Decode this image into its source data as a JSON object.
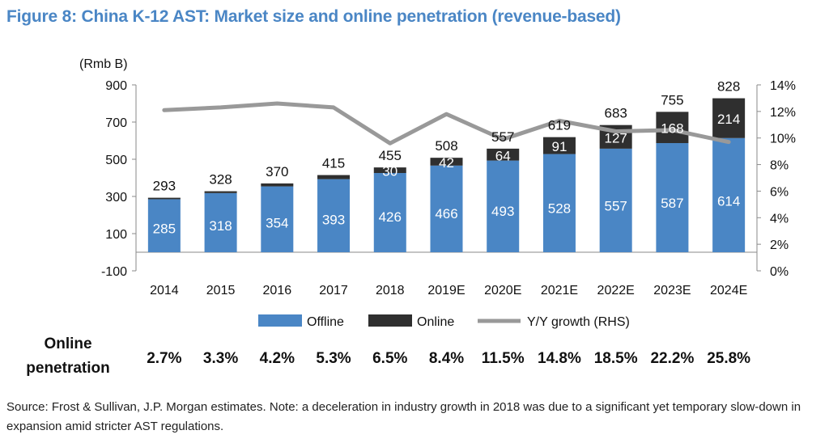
{
  "title": "Figure 8: China K-12 AST: Market size and online penetration (revenue-based)",
  "colors": {
    "title": "#4a86c5",
    "offline": "#4a86c5",
    "online": "#2f2f2f",
    "growth_line": "#999999"
  },
  "chart_data": {
    "type": "bar",
    "stacked": true,
    "categories": [
      "2014",
      "2015",
      "2016",
      "2017",
      "2018",
      "2019E",
      "2020E",
      "2021E",
      "2022E",
      "2023E",
      "2024E"
    ],
    "series": [
      {
        "name": "Offline",
        "axis": "left",
        "values": [
          285,
          318,
          354,
          393,
          426,
          466,
          493,
          528,
          557,
          587,
          614
        ]
      },
      {
        "name": "Online",
        "axis": "left",
        "values": [
          8,
          10,
          16,
          22,
          30,
          42,
          64,
          91,
          127,
          168,
          214
        ]
      },
      {
        "name": "Y/Y growth (RHS)",
        "type": "line",
        "axis": "right",
        "values": [
          12.1,
          12.3,
          12.6,
          12.3,
          9.6,
          11.8,
          9.9,
          11.3,
          10.5,
          10.6,
          9.7
        ]
      }
    ],
    "totals": [
      "293",
      "328",
      "370",
      "415",
      "455",
      "508",
      "557",
      "619",
      "683",
      "755",
      "828"
    ],
    "online_labels": [
      "",
      "",
      "",
      "",
      "30",
      "42",
      "64",
      "91",
      "127",
      "168",
      "214"
    ],
    "offline_labels": [
      "285",
      "318",
      "354",
      "393",
      "426",
      "466",
      "493",
      "528",
      "557",
      "587",
      "614"
    ],
    "y_left": {
      "unit_label": "(Rmb B)",
      "range": [
        -100,
        900
      ],
      "ticks": [
        "900",
        "700",
        "500",
        "300",
        "100",
        "-100"
      ],
      "tick_values": [
        900,
        700,
        500,
        300,
        100,
        -100
      ]
    },
    "y_right": {
      "range": [
        0,
        14
      ],
      "ticks": [
        "14%",
        "12%",
        "10%",
        "8%",
        "6%",
        "4%",
        "2%",
        "0%"
      ],
      "tick_values": [
        14,
        12,
        10,
        8,
        6,
        4,
        2,
        0
      ]
    },
    "grid": false,
    "legend": {
      "position": "bottom",
      "items": [
        "Offline",
        "Online",
        "Y/Y growth (RHS)"
      ]
    }
  },
  "penetration": {
    "label": "Online penetration",
    "values": [
      "2.7%",
      "3.3%",
      "4.2%",
      "5.3%",
      "6.5%",
      "8.4%",
      "11.5%",
      "14.8%",
      "18.5%",
      "22.2%",
      "25.8%"
    ]
  },
  "source": "Source: Frost & Sullivan, J.P. Morgan estimates. Note: a deceleration in industry growth in 2018 was due to a significant yet temporary slow-down in expansion amid stricter AST regulations."
}
